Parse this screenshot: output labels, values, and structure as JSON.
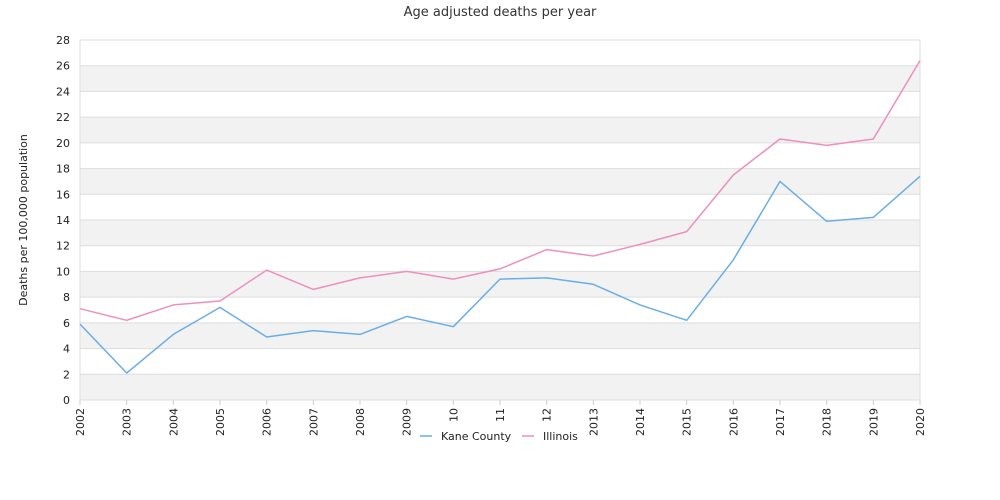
{
  "chart_data": {
    "type": "line",
    "title": "Age adjusted deaths per year",
    "xlabel": "",
    "ylabel": "Deaths per 100,000 population",
    "categories": [
      "2002",
      "2003",
      "2004",
      "2005",
      "2006",
      "2007",
      "2008",
      "2009",
      "10",
      "11",
      "12",
      "2013",
      "2014",
      "2015",
      "2016",
      "2017",
      "2018",
      "2019",
      "2020"
    ],
    "ylim": [
      0,
      28
    ],
    "yticks": [
      0,
      2,
      4,
      6,
      8,
      10,
      12,
      14,
      16,
      18,
      20,
      22,
      24,
      26,
      28
    ],
    "grid": true,
    "legend_position": "bottom",
    "series": [
      {
        "name": "Kane County",
        "color": "#6aaee8",
        "values": [
          5.9,
          2.1,
          5.1,
          7.2,
          4.9,
          5.4,
          5.1,
          6.5,
          5.7,
          9.4,
          9.5,
          9.0,
          7.4,
          6.2,
          10.9,
          17.0,
          13.9,
          14.2,
          17.4
        ]
      },
      {
        "name": "Illinois",
        "color": "#ee8fbd",
        "values": [
          7.1,
          6.2,
          7.4,
          7.7,
          10.1,
          8.6,
          9.5,
          10.0,
          9.4,
          10.2,
          11.7,
          11.2,
          12.1,
          13.1,
          17.5,
          20.3,
          19.8,
          20.3,
          26.4
        ]
      }
    ]
  }
}
